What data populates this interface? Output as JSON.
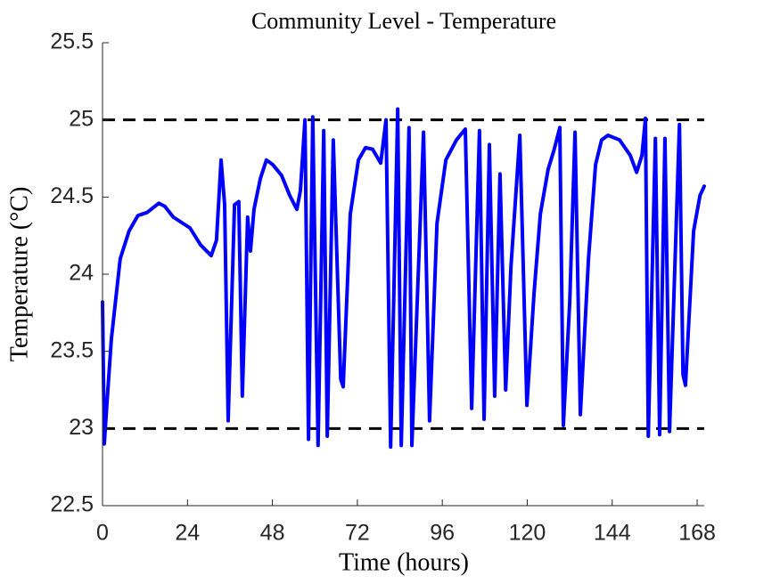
{
  "chart_data": {
    "type": "line",
    "title": "Community Level - Temperature",
    "x_label": "Time (hours)",
    "y_label": "Temperature (°C)",
    "xlim": [
      0,
      170
    ],
    "ylim": [
      22.5,
      25.5
    ],
    "xticks": [
      0,
      24,
      48,
      72,
      96,
      120,
      144,
      168
    ],
    "yticks": [
      22.5,
      23,
      23.5,
      24,
      24.5,
      25,
      25.5
    ],
    "grid": false,
    "reference_lines": [
      23,
      25
    ],
    "reference_color": "#000000",
    "series": [
      {
        "name": "Temperature",
        "color": "#0000ff",
        "x": [
          0,
          0.5,
          1.3,
          2.5,
          5,
          7.5,
          10,
          12.6,
          15.9,
          17.6,
          20,
          24.7,
          27.7,
          30.7,
          32.2,
          33.5,
          34.5,
          35.5,
          37.3,
          38.5,
          39.5,
          41,
          41.8,
          42.8,
          44.6,
          46.3,
          48.1,
          50.6,
          52.9,
          54.9,
          55.9,
          57.2,
          58.2,
          59.4,
          60.9,
          62.5,
          63.5,
          65.2,
          67.3,
          68,
          70,
          72.3,
          74.3,
          76.3,
          78.6,
          80.1,
          81.4,
          83.4,
          84.4,
          86.6,
          87.4,
          90.7,
          92.4,
          94.5,
          97,
          100,
          102.5,
          104.3,
          106.5,
          107.8,
          109.3,
          110.8,
          112.3,
          113.9,
          115.4,
          117.9,
          119.9,
          121.9,
          123.7,
          125.9,
          127.5,
          129.2,
          130.2,
          132,
          133.5,
          135,
          137.3,
          139.3,
          141,
          142.8,
          146.1,
          149.1,
          150.9,
          152.4,
          153.4,
          154.2,
          156.2,
          157.4,
          158.9,
          160.2,
          163,
          164,
          164.7,
          167,
          168.8,
          170
        ],
        "values": [
          23.82,
          22.9,
          23.18,
          23.58,
          24.1,
          24.28,
          24.38,
          24.4,
          24.46,
          24.44,
          24.37,
          24.3,
          24.19,
          24.12,
          24.22,
          24.74,
          24.45,
          23.05,
          24.45,
          24.47,
          23.21,
          24.37,
          24.15,
          24.42,
          24.62,
          24.74,
          24.71,
          24.64,
          24.51,
          24.42,
          24.54,
          25.0,
          22.93,
          25.02,
          22.89,
          24.93,
          22.95,
          24.87,
          23.32,
          23.27,
          24.39,
          24.74,
          24.82,
          24.81,
          24.72,
          25.0,
          22.88,
          25.07,
          22.89,
          24.95,
          22.89,
          24.92,
          23.05,
          24.33,
          24.74,
          24.87,
          24.94,
          23.13,
          24.93,
          23.06,
          24.84,
          23.21,
          24.65,
          23.25,
          24.05,
          24.9,
          23.15,
          23.87,
          24.39,
          24.68,
          24.8,
          24.95,
          23.02,
          23.82,
          24.92,
          23.09,
          24.1,
          24.71,
          24.87,
          24.9,
          24.87,
          24.77,
          24.66,
          24.77,
          25.01,
          22.95,
          24.88,
          22.96,
          24.88,
          22.98,
          24.97,
          23.35,
          23.28,
          24.28,
          24.51,
          24.57
        ]
      }
    ]
  }
}
